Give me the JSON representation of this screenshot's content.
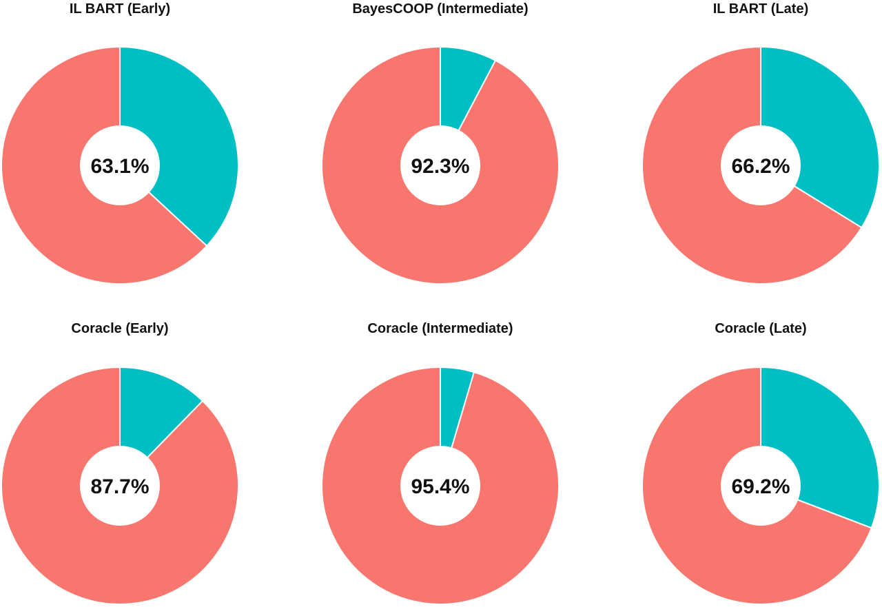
{
  "colors": {
    "major": "#f8766d",
    "minor": "#00bfc4",
    "hole": "#ffffff"
  },
  "chart_data": [
    {
      "type": "pie",
      "title": "IL BART (Early)",
      "center_label": "63.1%",
      "values": [
        36.9,
        63.1
      ]
    },
    {
      "type": "pie",
      "title": "BayesCOOP (Intermediate)",
      "center_label": "92.3%",
      "values": [
        7.7,
        92.3
      ]
    },
    {
      "type": "pie",
      "title": "IL BART (Late)",
      "center_label": "66.2%",
      "values": [
        33.8,
        66.2
      ]
    },
    {
      "type": "pie",
      "title": "Coracle (Early)",
      "center_label": "87.7%",
      "values": [
        12.3,
        87.7
      ]
    },
    {
      "type": "pie",
      "title": "Coracle (Intermediate)",
      "center_label": "95.4%",
      "values": [
        4.6,
        95.4
      ]
    },
    {
      "type": "pie",
      "title": "Coracle (Late)",
      "center_label": "69.2%",
      "values": [
        30.8,
        69.2
      ]
    }
  ]
}
